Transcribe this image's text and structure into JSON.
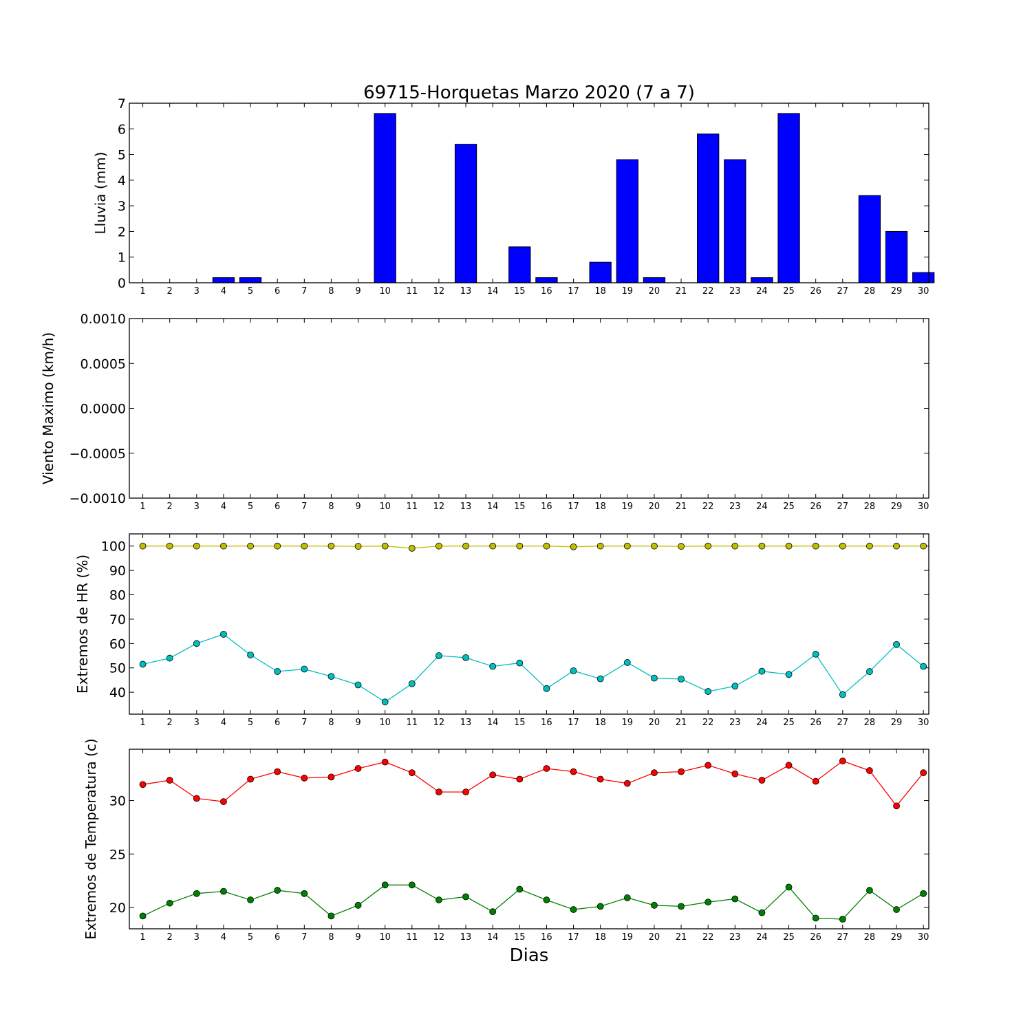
{
  "title": "69715-Horquetas Marzo 2020  (7 a 7)",
  "xlabel": "Dias",
  "chart_data": [
    {
      "type": "bar",
      "ylabel": "Lluvia (mm)",
      "ylim": [
        0,
        7
      ],
      "yticks": [
        "0",
        "1",
        "2",
        "3",
        "4",
        "5",
        "6",
        "7"
      ],
      "x": [
        1,
        2,
        3,
        4,
        5,
        6,
        7,
        8,
        9,
        10,
        11,
        12,
        13,
        14,
        15,
        16,
        17,
        18,
        19,
        20,
        21,
        22,
        23,
        24,
        25,
        26,
        27,
        28,
        29,
        30
      ],
      "values": [
        0,
        0,
        0,
        0.2,
        0.2,
        0,
        0,
        0,
        0,
        6.6,
        0,
        0,
        5.4,
        0,
        1.4,
        0.2,
        0,
        0.8,
        4.8,
        0.2,
        0,
        5.8,
        4.8,
        0.2,
        6.6,
        0,
        0,
        3.4,
        2.0,
        0.4
      ],
      "color": "#0000ff"
    },
    {
      "type": "line",
      "ylabel": "Viento Maximo (km/h)",
      "ylim": [
        -0.001,
        0.001
      ],
      "yticks": [
        "−0.0010",
        "−0.0005",
        "0.0000",
        "0.0005",
        "0.0010"
      ],
      "x": [
        1,
        2,
        3,
        4,
        5,
        6,
        7,
        8,
        9,
        10,
        11,
        12,
        13,
        14,
        15,
        16,
        17,
        18,
        19,
        20,
        21,
        22,
        23,
        24,
        25,
        26,
        27,
        28,
        29,
        30
      ],
      "series": []
    },
    {
      "type": "line",
      "ylabel": "Extremos de HR (%)",
      "ylim": [
        31,
        105
      ],
      "yticks": [
        "40",
        "50",
        "60",
        "70",
        "80",
        "90",
        "100"
      ],
      "x": [
        1,
        2,
        3,
        4,
        5,
        6,
        7,
        8,
        9,
        10,
        11,
        12,
        13,
        14,
        15,
        16,
        17,
        18,
        19,
        20,
        21,
        22,
        23,
        24,
        25,
        26,
        27,
        28,
        29,
        30
      ],
      "series": [
        {
          "color": "#bfbf00",
          "values": [
            100,
            100,
            100,
            100,
            100,
            100,
            100,
            100,
            99.9,
            100,
            99.1,
            100,
            100,
            100,
            100,
            100,
            99.7,
            100,
            100,
            100,
            99.9,
            100,
            100,
            100,
            100,
            100,
            100,
            100,
            100,
            100
          ]
        },
        {
          "color": "#00bfbf",
          "values": [
            51.5,
            54,
            60,
            63.8,
            55.3,
            48.5,
            49.5,
            46.5,
            43,
            36,
            43.5,
            55,
            54.2,
            50.6,
            52,
            41.5,
            48.8,
            45.5,
            52.2,
            45.8,
            45.4,
            40.3,
            42.5,
            48.6,
            47.3,
            55.6,
            39,
            48.5,
            59.6,
            50.6
          ]
        }
      ]
    },
    {
      "type": "line",
      "ylabel": "Extremos de Temperatura (c)",
      "ylim": [
        18,
        34.8
      ],
      "yticks": [
        "20",
        "25",
        "30"
      ],
      "x": [
        1,
        2,
        3,
        4,
        5,
        6,
        7,
        8,
        9,
        10,
        11,
        12,
        13,
        14,
        15,
        16,
        17,
        18,
        19,
        20,
        21,
        22,
        23,
        24,
        25,
        26,
        27,
        28,
        29,
        30
      ],
      "series": [
        {
          "color": "#ff0000",
          "values": [
            31.5,
            31.9,
            30.2,
            29.9,
            32.0,
            32.7,
            32.1,
            32.2,
            33.0,
            33.6,
            32.6,
            30.8,
            30.8,
            32.4,
            32.0,
            33.0,
            32.7,
            32.0,
            31.6,
            32.6,
            32.7,
            33.3,
            32.5,
            31.9,
            33.3,
            31.8,
            33.7,
            32.8,
            29.5,
            32.6
          ]
        },
        {
          "color": "#008000",
          "values": [
            19.2,
            20.4,
            21.3,
            21.5,
            20.7,
            21.6,
            21.3,
            19.2,
            20.2,
            22.1,
            22.1,
            20.7,
            21.0,
            19.6,
            21.7,
            20.7,
            19.8,
            20.1,
            20.9,
            20.2,
            20.1,
            20.5,
            20.8,
            19.5,
            21.9,
            19.0,
            18.9,
            21.6,
            19.8,
            21.3
          ]
        }
      ]
    }
  ]
}
